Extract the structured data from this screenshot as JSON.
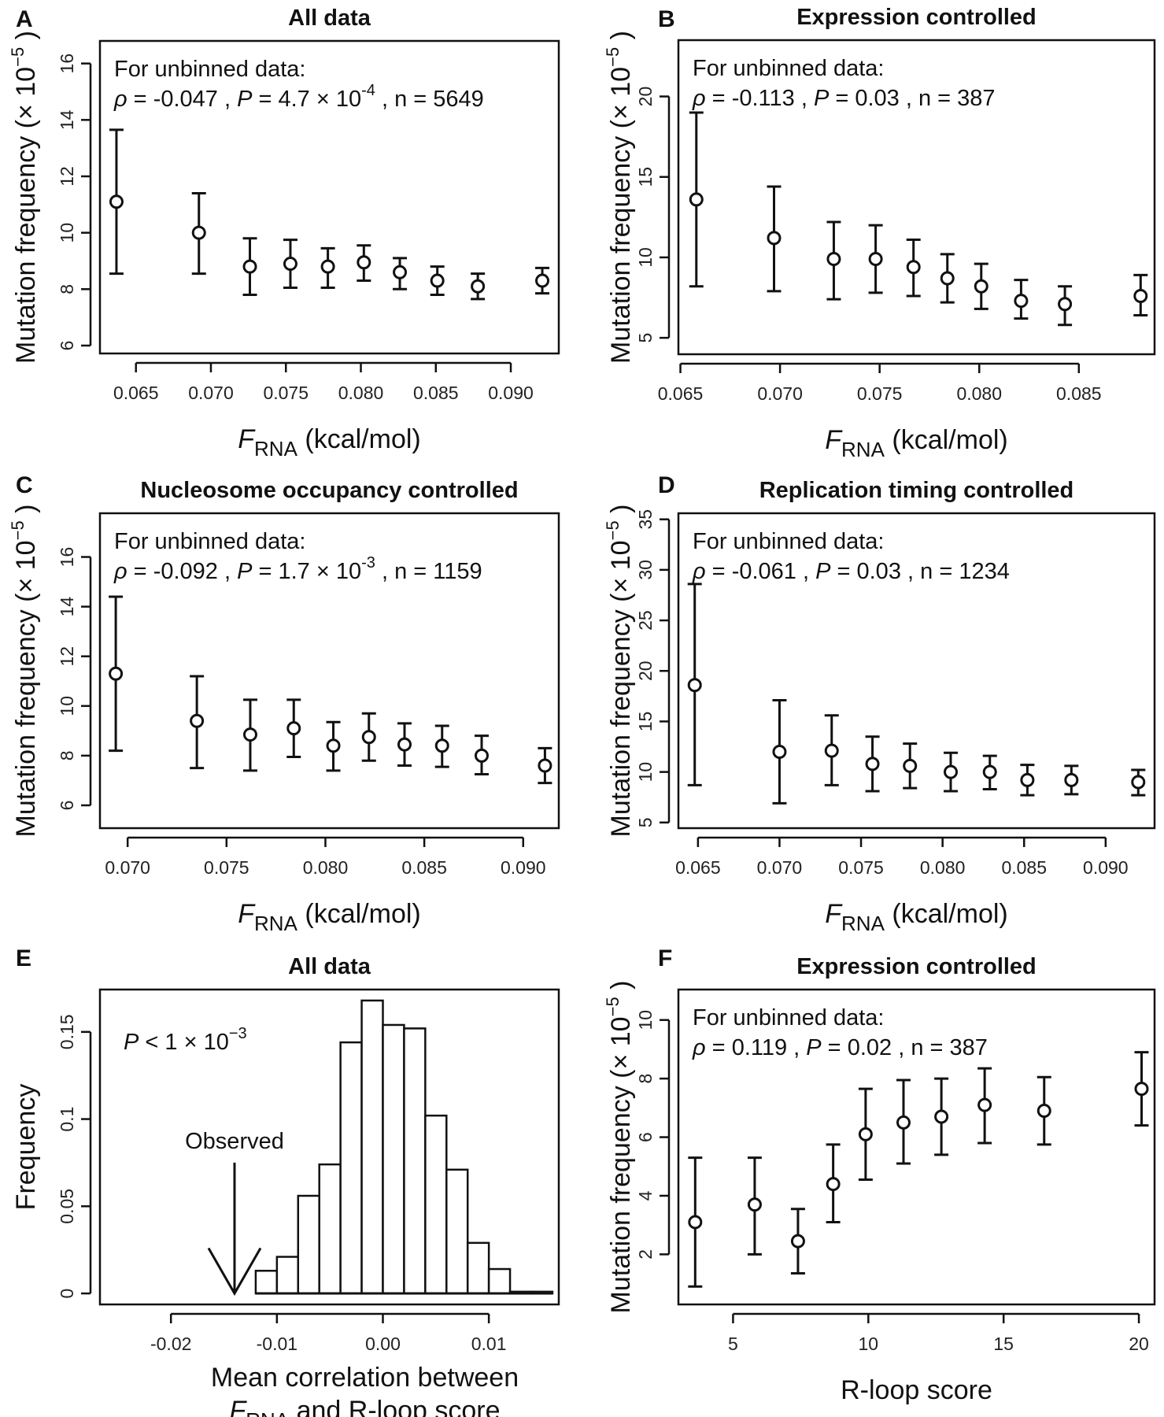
{
  "labels": {
    "rho": "ρ",
    "p": "P",
    "n": "n",
    "eq": " = ",
    "sep": " ,  "
  },
  "chart_data": [
    {
      "panel": "A",
      "title": "All data",
      "type": "scatter",
      "ylabel": {
        "main": "Mutation frequency (× 10",
        "exp": "−5",
        "close": " )"
      },
      "xlabel": {
        "var": "F",
        "sub": "RNA",
        "unit": " (kcal/mol)"
      },
      "annotation": {
        "line1": "For unbinned data:",
        "rho": "-0.047",
        "p": "4.7 × 10",
        "p_exp": "-4",
        "n": "5649"
      },
      "xlim": [
        0.0626,
        0.0932
      ],
      "ylim": [
        5.72,
        16.8
      ],
      "xticks": [
        "0.065",
        "0.070",
        "0.075",
        "0.080",
        "0.085",
        "0.090"
      ],
      "yticks": [
        "6",
        "8",
        "10",
        "12",
        "14",
        "16"
      ],
      "points": [
        {
          "x": 0.0637,
          "y": 11.1,
          "lo": 8.55,
          "hi": 13.65
        },
        {
          "x": 0.0692,
          "y": 10.0,
          "lo": 8.55,
          "hi": 11.4
        },
        {
          "x": 0.0726,
          "y": 8.8,
          "lo": 7.8,
          "hi": 9.8
        },
        {
          "x": 0.0753,
          "y": 8.9,
          "lo": 8.05,
          "hi": 9.75
        },
        {
          "x": 0.0778,
          "y": 8.8,
          "lo": 8.05,
          "hi": 9.45
        },
        {
          "x": 0.0802,
          "y": 8.95,
          "lo": 8.3,
          "hi": 9.55
        },
        {
          "x": 0.0826,
          "y": 8.6,
          "lo": 8.0,
          "hi": 9.1
        },
        {
          "x": 0.0851,
          "y": 8.3,
          "lo": 7.8,
          "hi": 8.8
        },
        {
          "x": 0.0878,
          "y": 8.1,
          "lo": 7.65,
          "hi": 8.55
        },
        {
          "x": 0.0921,
          "y": 8.3,
          "lo": 7.85,
          "hi": 8.75
        }
      ]
    },
    {
      "panel": "B",
      "title": "Expression controlled",
      "type": "scatter",
      "ylabel": {
        "main": "Mutation frequency (× 10",
        "exp": "−5",
        "close": " )"
      },
      "xlabel": {
        "var": "F",
        "sub": "RNA",
        "unit": " (kcal/mol)"
      },
      "annotation": {
        "line1": "For unbinned data:",
        "rho": "-0.113",
        "p": "0.03",
        "p_exp": "",
        "n": "387"
      },
      "xlim": [
        0.0649,
        0.0888
      ],
      "ylim": [
        3.98,
        23.5
      ],
      "xticks": [
        "0.065",
        "0.070",
        "0.075",
        "0.080",
        "0.085"
      ],
      "yticks": [
        "5",
        "10",
        "15",
        "20"
      ],
      "points": [
        {
          "x": 0.0658,
          "y": 13.6,
          "lo": 8.2,
          "hi": 19.0
        },
        {
          "x": 0.0697,
          "y": 11.2,
          "lo": 7.9,
          "hi": 14.4
        },
        {
          "x": 0.0727,
          "y": 9.9,
          "lo": 7.4,
          "hi": 12.2
        },
        {
          "x": 0.0748,
          "y": 9.9,
          "lo": 7.8,
          "hi": 12.0
        },
        {
          "x": 0.0767,
          "y": 9.4,
          "lo": 7.6,
          "hi": 11.1
        },
        {
          "x": 0.0784,
          "y": 8.7,
          "lo": 7.2,
          "hi": 10.2
        },
        {
          "x": 0.0801,
          "y": 8.2,
          "lo": 6.8,
          "hi": 9.6
        },
        {
          "x": 0.0821,
          "y": 7.3,
          "lo": 6.2,
          "hi": 8.6
        },
        {
          "x": 0.0843,
          "y": 7.1,
          "lo": 5.8,
          "hi": 8.2
        },
        {
          "x": 0.0881,
          "y": 7.6,
          "lo": 6.4,
          "hi": 8.9
        }
      ]
    },
    {
      "panel": "C",
      "title": "Nucleosome occupancy controlled",
      "type": "scatter",
      "ylabel": {
        "main": "Mutation frequency (× 10",
        "exp": "−5",
        "close": " )"
      },
      "xlabel": {
        "var": "F",
        "sub": "RNA",
        "unit": " (kcal/mol)"
      },
      "annotation": {
        "line1": "For unbinned data:",
        "rho": "-0.092",
        "p": "1.7 × 10",
        "p_exp": "-3",
        "n": "1159"
      },
      "xlim": [
        0.0686,
        0.0918
      ],
      "ylim": [
        5.08,
        17.76
      ],
      "xticks": [
        "0.070",
        "0.075",
        "0.080",
        "0.085",
        "0.090"
      ],
      "yticks": [
        "6",
        "8",
        "10",
        "12",
        "14",
        "16"
      ],
      "points": [
        {
          "x": 0.0694,
          "y": 11.3,
          "lo": 8.2,
          "hi": 14.4
        },
        {
          "x": 0.0735,
          "y": 9.4,
          "lo": 7.5,
          "hi": 11.2
        },
        {
          "x": 0.0762,
          "y": 8.85,
          "lo": 7.4,
          "hi": 10.25
        },
        {
          "x": 0.0784,
          "y": 9.1,
          "lo": 7.95,
          "hi": 10.25
        },
        {
          "x": 0.0804,
          "y": 8.4,
          "lo": 7.4,
          "hi": 9.35
        },
        {
          "x": 0.0822,
          "y": 8.75,
          "lo": 7.8,
          "hi": 9.7
        },
        {
          "x": 0.084,
          "y": 8.45,
          "lo": 7.6,
          "hi": 9.3
        },
        {
          "x": 0.0859,
          "y": 8.4,
          "lo": 7.55,
          "hi": 9.2
        },
        {
          "x": 0.0879,
          "y": 8.0,
          "lo": 7.25,
          "hi": 8.8
        },
        {
          "x": 0.0911,
          "y": 7.6,
          "lo": 6.9,
          "hi": 8.3
        }
      ]
    },
    {
      "panel": "D",
      "title": "Replication timing controlled",
      "type": "scatter",
      "ylabel": {
        "main": "Mutation frequency (× 10",
        "exp": "−5",
        "close": " )"
      },
      "xlabel": {
        "var": "F",
        "sub": "RNA",
        "unit": " (kcal/mol)"
      },
      "annotation": {
        "line1": "For unbinned data:",
        "rho": "-0.061",
        "p": "0.03",
        "p_exp": "",
        "n": "1234"
      },
      "xlim": [
        0.0638,
        0.093
      ],
      "ylim": [
        4.44,
        35.6
      ],
      "xticks": [
        "0.065",
        "0.070",
        "0.075",
        "0.080",
        "0.085",
        "0.090"
      ],
      "yticks": [
        "5",
        "10",
        "15",
        "20",
        "25",
        "30",
        "35"
      ],
      "points": [
        {
          "x": 0.0648,
          "y": 18.6,
          "lo": 8.7,
          "hi": 28.6
        },
        {
          "x": 0.07,
          "y": 12.0,
          "lo": 6.9,
          "hi": 17.1
        },
        {
          "x": 0.0732,
          "y": 12.1,
          "lo": 8.7,
          "hi": 15.6
        },
        {
          "x": 0.0757,
          "y": 10.8,
          "lo": 8.1,
          "hi": 13.5
        },
        {
          "x": 0.078,
          "y": 10.6,
          "lo": 8.4,
          "hi": 12.8
        },
        {
          "x": 0.0805,
          "y": 10.0,
          "lo": 8.1,
          "hi": 11.9
        },
        {
          "x": 0.0829,
          "y": 10.0,
          "lo": 8.3,
          "hi": 11.6
        },
        {
          "x": 0.0852,
          "y": 9.2,
          "lo": 7.7,
          "hi": 10.7
        },
        {
          "x": 0.0879,
          "y": 9.2,
          "lo": 7.8,
          "hi": 10.6
        },
        {
          "x": 0.092,
          "y": 9.0,
          "lo": 7.7,
          "hi": 10.2
        }
      ]
    },
    {
      "panel": "E",
      "title": "All data",
      "type": "bar",
      "ylabel": {
        "main": "Frequency"
      },
      "xlabel": {
        "line1": "Mean correlation between",
        "var": "F",
        "sub": "RNA",
        "line2": " and R-loop score"
      },
      "annotation": {
        "p_label": "P",
        "text": " < 1 × 10",
        "p_exp": "−3",
        "observed": "Observed"
      },
      "observed_x": -0.014,
      "xlim": [
        -0.0267,
        0.0166
      ],
      "ylim": [
        -0.0063,
        0.1743
      ],
      "xticks": [
        "-0.02",
        "-0.01",
        "0.00",
        "0.01"
      ],
      "yticks": [
        "0",
        "0.05",
        "0.1",
        "0.15"
      ],
      "bin_width": 0.002,
      "bins": [
        {
          "x0": -0.012,
          "freq": 0.013
        },
        {
          "x0": -0.01,
          "freq": 0.021
        },
        {
          "x0": -0.008,
          "freq": 0.056
        },
        {
          "x0": -0.006,
          "freq": 0.074
        },
        {
          "x0": -0.004,
          "freq": 0.144
        },
        {
          "x0": -0.002,
          "freq": 0.168
        },
        {
          "x0": 0.0,
          "freq": 0.154
        },
        {
          "x0": 0.002,
          "freq": 0.152
        },
        {
          "x0": 0.004,
          "freq": 0.102
        },
        {
          "x0": 0.006,
          "freq": 0.071
        },
        {
          "x0": 0.008,
          "freq": 0.029
        },
        {
          "x0": 0.01,
          "freq": 0.014
        },
        {
          "x0": 0.012,
          "freq": 0.001
        },
        {
          "x0": 0.014,
          "freq": 0.001
        }
      ]
    },
    {
      "panel": "F",
      "title": "Expression controlled",
      "type": "scatter",
      "ylabel": {
        "main": "Mutation frequency (× 10",
        "exp": "−5",
        "close": " )"
      },
      "xlabel": {
        "text": "R-loop score"
      },
      "annotation": {
        "line1": "For unbinned data:",
        "rho": "0.119",
        "p": "0.02",
        "p_exp": "",
        "n": "387"
      },
      "xlim": [
        2.98,
        20.58
      ],
      "ylim": [
        0.29,
        11.04
      ],
      "xticks": [
        "5",
        "10",
        "15",
        "20"
      ],
      "yticks": [
        "2",
        "4",
        "6",
        "8",
        "10"
      ],
      "points": [
        {
          "x": 3.6,
          "y": 3.1,
          "lo": 0.9,
          "hi": 5.3
        },
        {
          "x": 5.8,
          "y": 3.7,
          "lo": 2.0,
          "hi": 5.3
        },
        {
          "x": 7.4,
          "y": 2.45,
          "lo": 1.35,
          "hi": 3.55
        },
        {
          "x": 8.7,
          "y": 4.4,
          "lo": 3.1,
          "hi": 5.75
        },
        {
          "x": 9.9,
          "y": 6.1,
          "lo": 4.55,
          "hi": 7.65
        },
        {
          "x": 11.3,
          "y": 6.5,
          "lo": 5.1,
          "hi": 7.95
        },
        {
          "x": 12.7,
          "y": 6.7,
          "lo": 5.4,
          "hi": 8.0
        },
        {
          "x": 14.3,
          "y": 7.1,
          "lo": 5.8,
          "hi": 8.35
        },
        {
          "x": 16.5,
          "y": 6.9,
          "lo": 5.75,
          "hi": 8.05
        },
        {
          "x": 20.1,
          "y": 7.65,
          "lo": 6.4,
          "hi": 8.9
        }
      ]
    }
  ]
}
